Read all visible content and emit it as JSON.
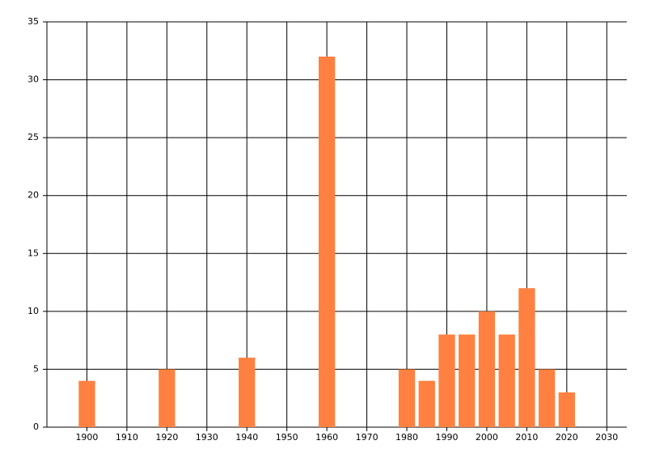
{
  "chart_data": {
    "type": "bar",
    "x": [
      1900,
      1920,
      1940,
      1960,
      1980,
      1985,
      1990,
      1995,
      2000,
      2005,
      2010,
      2015,
      2020
    ],
    "values": [
      4,
      5,
      6,
      32,
      5,
      4,
      8,
      8,
      10,
      8,
      12,
      5,
      3
    ],
    "color": "#ff8040",
    "xlim": [
      1890,
      2035
    ],
    "xticks": [
      1900,
      1910,
      1920,
      1930,
      1940,
      1950,
      1960,
      1970,
      1980,
      1990,
      2000,
      2010,
      2020,
      2030
    ],
    "ylim": [
      0,
      35
    ],
    "yticks": [
      0,
      5,
      10,
      15,
      20,
      25,
      30,
      35
    ],
    "grid": true
  }
}
